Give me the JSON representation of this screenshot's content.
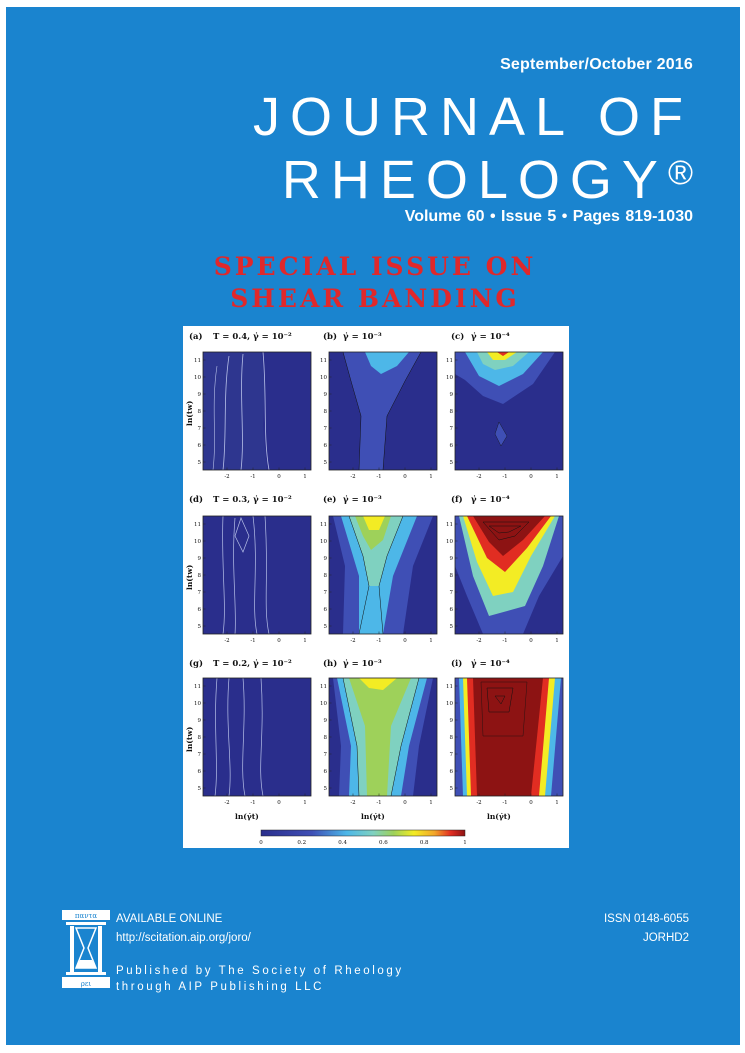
{
  "header": {
    "date": "September/October 2016",
    "title_line1": "JOURNAL OF",
    "title_line2": "RHEOLOGY",
    "registered_mark": "®",
    "volume_line": "Volume 60 • Issue 5 • Pages 819-1030"
  },
  "special_issue": {
    "line1": "SPECIAL ISSUE ON",
    "line2": "SHEAR BANDING"
  },
  "figure": {
    "panel_labels": [
      "(a)",
      "(b)",
      "(c)",
      "(d)",
      "(e)",
      "(f)",
      "(g)",
      "(h)",
      "(i)"
    ],
    "panel_params": [
      "T = 0.4, γ̇ = 10⁻²",
      "γ̇ = 10⁻³",
      "γ̇ = 10⁻⁴",
      "T = 0.3, γ̇ = 10⁻²",
      "γ̇ = 10⁻³",
      "γ̇ = 10⁻⁴",
      "T = 0.2, γ̇ = 10⁻²",
      "γ̇ = 10⁻³",
      "γ̇ = 10⁻⁴"
    ],
    "y_axis_label": "ln(tw)",
    "x_axis_label": "ln(γ̇t)",
    "x_ticks": [
      "-2",
      "-1",
      "0",
      "1"
    ],
    "y_ticks": [
      "11",
      "10",
      "9",
      "8",
      "7",
      "6",
      "5"
    ],
    "colorbar_ticks": [
      "0",
      "0.2",
      "0.4",
      "0.6",
      "0.8",
      "1"
    ],
    "colors": {
      "deep_blue": "#2a2e8c",
      "blue": "#3f4fb5",
      "light_blue": "#4db7e8",
      "teal": "#7fd1c0",
      "green": "#9ed15a",
      "yellow": "#f3ec24",
      "orange": "#f2a62a",
      "red": "#e12d22",
      "dark_red": "#8d1313"
    }
  },
  "footer": {
    "available": "AVAILABLE ONLINE",
    "url": "http://scitation.aip.org/joro/",
    "issn": "ISSN 0148-6055",
    "coden": "JORHD2",
    "publisher_line1": "Published by The Society of Rheology",
    "publisher_line2": "through AIP Publishing LLC",
    "logo_top_text": "παντα",
    "logo_bottom_text": "ρει"
  }
}
